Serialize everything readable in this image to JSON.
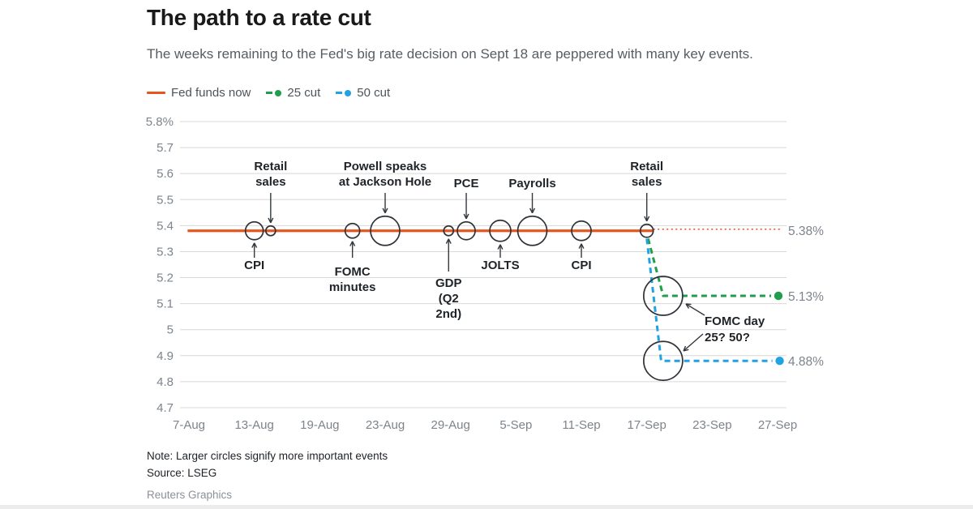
{
  "header": {
    "title": "The path to a rate cut",
    "subtitle": "The weeks remaining to the Fed's big rate decision on Sept 18 are peppered with many key events."
  },
  "legend": {
    "items": [
      {
        "id": "fed-funds-now",
        "label": "Fed funds now",
        "color": "#e8541d",
        "marker": "solid-line"
      },
      {
        "id": "cut-25",
        "label": "25 cut",
        "color": "#1f9e4b",
        "marker": "dash-dot"
      },
      {
        "id": "cut-50",
        "label": "50 cut",
        "color": "#21a2e2",
        "marker": "dash-dot"
      }
    ]
  },
  "chart_data": {
    "type": "line",
    "title": "The path to a rate cut",
    "subtitle": "The weeks remaining to the Fed's big rate decision on Sept 18 are peppered with many key events.",
    "xlabel": "",
    "ylabel": "",
    "ylim": [
      4.7,
      5.8
    ],
    "grid": "horizontal",
    "legend_position": "top",
    "y_ticks": [
      {
        "value": 5.8,
        "label": "5.8%"
      },
      {
        "value": 5.7,
        "label": "5.7"
      },
      {
        "value": 5.6,
        "label": "5.6"
      },
      {
        "value": 5.5,
        "label": "5.5"
      },
      {
        "value": 5.4,
        "label": "5.4"
      },
      {
        "value": 5.3,
        "label": "5.3"
      },
      {
        "value": 5.2,
        "label": "5.2"
      },
      {
        "value": 5.1,
        "label": "5.1"
      },
      {
        "value": 5.0,
        "label": "5"
      },
      {
        "value": 4.9,
        "label": "4.9"
      },
      {
        "value": 4.8,
        "label": "4.8"
      },
      {
        "value": 4.7,
        "label": "4.7"
      }
    ],
    "x_ticks": [
      "7-Aug",
      "13-Aug",
      "19-Aug",
      "23-Aug",
      "29-Aug",
      "5-Sep",
      "11-Sep",
      "17-Sep",
      "23-Sep",
      "27-Sep"
    ],
    "series": [
      {
        "name": "Fed funds now",
        "color": "#e8541d",
        "style": "solid",
        "value": 5.38,
        "x_start": -0.02,
        "x_end": 7.1,
        "projection": {
          "style": "dotted",
          "color": "#dd5a31",
          "x_end": 9.06
        },
        "end_label": "5.38%"
      },
      {
        "name": "25 cut",
        "color": "#1f9e4b",
        "style": "dashed",
        "path": [
          {
            "x": 7.02,
            "y": 5.35
          },
          {
            "x": 7.25,
            "y": 5.13
          },
          {
            "x": 8.9,
            "y": 5.13
          }
        ],
        "end_label": "5.13%"
      },
      {
        "name": "50 cut",
        "color": "#21a2e2",
        "style": "dashed",
        "path": [
          {
            "x": 7.0,
            "y": 5.35
          },
          {
            "x": 7.22,
            "y": 4.88
          },
          {
            "x": 8.92,
            "y": 4.88
          }
        ],
        "end_label": "4.88%"
      }
    ],
    "events": [
      {
        "label_lines": [
          "CPI"
        ],
        "x": 1.0,
        "y": 5.38,
        "r": 11,
        "side": "below"
      },
      {
        "label_lines": [
          "Retail",
          "sales"
        ],
        "x": 1.25,
        "y": 5.38,
        "r": 6,
        "side": "above"
      },
      {
        "label_lines": [
          "FOMC",
          "minutes"
        ],
        "x": 2.5,
        "y": 5.38,
        "r": 9,
        "side": "below"
      },
      {
        "label_lines": [
          "Powell speaks",
          "at Jackson Hole"
        ],
        "x": 3.0,
        "y": 5.38,
        "r": 18,
        "side": "above"
      },
      {
        "label_lines": [
          "GDP",
          "(Q2",
          "2nd)"
        ],
        "x": 3.97,
        "y": 5.38,
        "r": 6,
        "side": "below-far"
      },
      {
        "label_lines": [
          "PCE"
        ],
        "x": 4.24,
        "y": 5.38,
        "r": 11,
        "side": "above"
      },
      {
        "label_lines": [
          "JOLTS"
        ],
        "x": 4.76,
        "y": 5.38,
        "r": 13,
        "side": "below"
      },
      {
        "label_lines": [
          "Payrolls"
        ],
        "x": 5.25,
        "y": 5.38,
        "r": 18,
        "side": "above"
      },
      {
        "label_lines": [
          "CPI"
        ],
        "x": 6.0,
        "y": 5.38,
        "r": 12,
        "side": "below"
      },
      {
        "label_lines": [
          "Retail",
          "sales"
        ],
        "x": 7.0,
        "y": 5.38,
        "r": 8,
        "side": "above"
      },
      {
        "label_lines": [],
        "x": 7.25,
        "y": 5.13,
        "r": 24,
        "side": "none"
      },
      {
        "label_lines": [],
        "x": 7.25,
        "y": 4.88,
        "r": 24,
        "side": "none"
      }
    ],
    "annotations": {
      "fomc_day_lines": [
        "FOMC day",
        "25? 50?"
      ]
    }
  },
  "footer": {
    "note": "Note: Larger circles signify more important events",
    "source": "Source: LSEG",
    "credit": "Reuters Graphics"
  }
}
